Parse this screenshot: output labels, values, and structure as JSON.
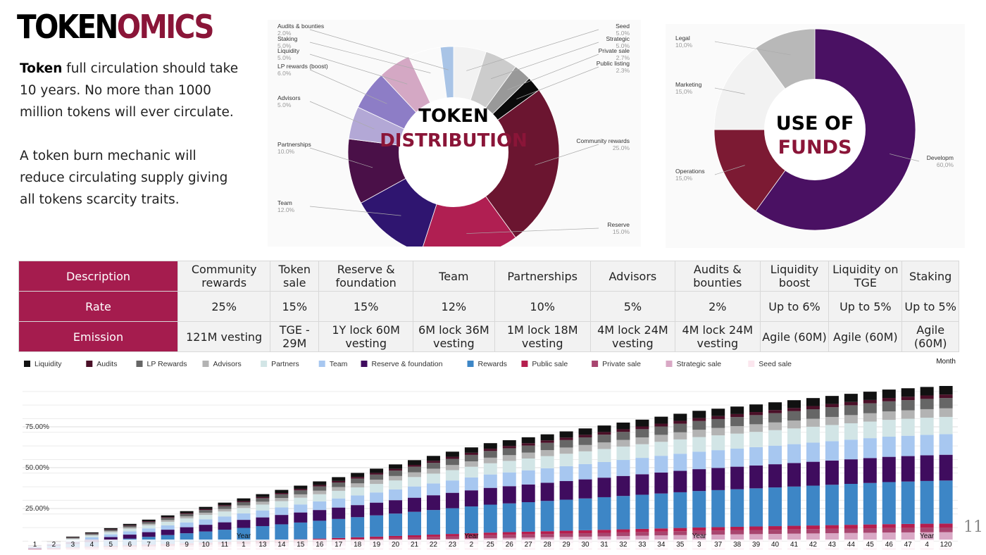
{
  "title": {
    "part1": "TOKEN",
    "part2": "OMICS"
  },
  "intro": {
    "p1_bold": "Token",
    "p1_rest": " full circulation should take 10 years. No more than 1000 million tokens will ever circulate.",
    "p2": "A token burn mechanic will reduce circulating supply giving all tokens scarcity traits."
  },
  "page_number": "11",
  "chart_data": [
    {
      "type": "pie",
      "title_line1": "TOKEN",
      "title_line2": "DISTRIBUTION",
      "slices": [
        {
          "label": "Seed",
          "value": 5.0,
          "value_text": "5.0%",
          "color": "#f2f2f2"
        },
        {
          "label": "Strategic",
          "value": 5.0,
          "value_text": "5.0%",
          "color": "#cccccc"
        },
        {
          "label": "Private sale",
          "value": 2.7,
          "value_text": "2.7%",
          "color": "#999999"
        },
        {
          "label": "Public listing",
          "value": 2.3,
          "value_text": "2.3%",
          "color": "#0a0a0a"
        },
        {
          "label": "Community rewards",
          "value": 25.0,
          "value_text": "25.0%",
          "color": "#6b1530"
        },
        {
          "label": "Reserve",
          "value": 15.0,
          "value_text": "15.0%",
          "color": "#b01f52"
        },
        {
          "label": "Team",
          "value": 12.0,
          "value_text": "12.0%",
          "color": "#2f1570"
        },
        {
          "label": "Partnerships",
          "value": 10.0,
          "value_text": "10.0%",
          "color": "#4a1048"
        },
        {
          "label": "Advisors",
          "value": 5.0,
          "value_text": "5.0%",
          "color": "#b3a8d6"
        },
        {
          "label": "LP rewards (boost)",
          "value": 6.0,
          "value_text": "6.0%",
          "color": "#8d7dc6"
        },
        {
          "label": "Liquidity",
          "value": 5.0,
          "value_text": "5.0%",
          "color": "#d4a8c4"
        },
        {
          "label": "Staking",
          "value": 5.0,
          "value_text": "5.0%",
          "color": "#fafafa"
        },
        {
          "label": "Audits & bounties",
          "value": 2.0,
          "value_text": "2.0%",
          "color": "#a9c4e6"
        }
      ]
    },
    {
      "type": "pie",
      "title_line1": "USE OF",
      "title_line2": "FUNDS",
      "slices": [
        {
          "label": "Developm",
          "value": 60.0,
          "value_text": "60,0%",
          "color": "#4a1163"
        },
        {
          "label": "Operations",
          "value": 15.0,
          "value_text": "15,0%",
          "color": "#7c1a33"
        },
        {
          "label": "Marketing",
          "value": 15.0,
          "value_text": "15,0%",
          "color": "#f2f2f2"
        },
        {
          "label": "Legal",
          "value": 10.0,
          "value_text": "10,0%",
          "color": "#b8b8b8"
        }
      ]
    },
    {
      "type": "table",
      "columns": [
        "Community rewards",
        "Token sale",
        "Reserve & foundation",
        "Team",
        "Partnerships",
        "Advisors",
        "Audits & bounties",
        "Liquidity boost",
        "Liquidity on TGE",
        "Staking"
      ],
      "rows": [
        {
          "label": "Description",
          "values": null
        },
        {
          "label": "Rate",
          "values": [
            "25%",
            "15%",
            "15%",
            "12%",
            "10%",
            "5%",
            "2%",
            "Up to 6%",
            "Up to 5%",
            "Up to 5%"
          ]
        },
        {
          "label": "Emission",
          "values": [
            "121M vesting",
            "TGE - 29M",
            "1Y lock 60M vesting",
            "6M lock 36M vesting",
            "1M lock 18M vesting",
            "4M lock 24M vesting",
            "4M lock 24M vesting",
            "Agile (60M)",
            "Agile (60M)",
            "Agile (60M)"
          ]
        }
      ]
    },
    {
      "type": "bar",
      "stacked": true,
      "ylim": [
        0,
        100
      ],
      "yticks": [
        "25.00%",
        "50.00%",
        "75.00%"
      ],
      "ytick_values": [
        25,
        50,
        75
      ],
      "categories": [
        "1",
        "2",
        "3",
        "4",
        "5",
        "6",
        "7",
        "8",
        "9",
        "10",
        "11",
        "1",
        "13",
        "14",
        "15",
        "16",
        "17",
        "18",
        "19",
        "20",
        "21",
        "22",
        "23",
        "2",
        "25",
        "26",
        "27",
        "28",
        "29",
        "30",
        "31",
        "32",
        "33",
        "34",
        "35",
        "3",
        "37",
        "38",
        "39",
        "40",
        "41",
        "42",
        "43",
        "44",
        "45",
        "46",
        "47",
        "4",
        "120"
      ],
      "year_labels": {
        "11": "Year",
        "23": "Year",
        "35": "Year",
        "47": "Year"
      },
      "x_axis_label": "Month",
      "legend_position": "top",
      "series": [
        {
          "name": "Seed sale",
          "color": "#fbe6ee",
          "final": 5.0
        },
        {
          "name": "Strategic sale",
          "color": "#d9a8c5",
          "final": 5.0
        },
        {
          "name": "Private sale",
          "color": "#a8456f",
          "final": 2.7
        },
        {
          "name": "Public sale",
          "color": "#b51e4e",
          "final": 2.3
        },
        {
          "name": "Rewards",
          "color": "#3d86c6",
          "final": 25.0
        },
        {
          "name": "Reserve & foundation",
          "color": "#3f0c5e",
          "final": 15.0
        },
        {
          "name": "Team",
          "color": "#a7c7f0",
          "final": 12.0
        },
        {
          "name": "Partners",
          "color": "#d2e5e6",
          "final": 10.0
        },
        {
          "name": "Advisors",
          "color": "#b3b3b3",
          "final": 5.0
        },
        {
          "name": "LP Rewards",
          "color": "#666666",
          "final": 6.0
        },
        {
          "name": "Audits",
          "color": "#4a0f27",
          "final": 2.0
        },
        {
          "name": "Liquidity",
          "color": "#111111",
          "final": 5.0
        }
      ],
      "legend_order": [
        "Liquidity",
        "Audits",
        "LP Rewards",
        "Advisors",
        "Partners",
        "Team",
        "Reserve & foundation",
        "Rewards",
        "Public sale",
        "Private sale",
        "Strategic sale",
        "Seed sale"
      ],
      "totals": [
        2.6,
        5.2,
        7.8,
        10.4,
        13.0,
        15.6,
        18.2,
        20.8,
        23.4,
        26.0,
        28.6,
        31.2,
        33.8,
        36.4,
        39.0,
        41.6,
        44.2,
        46.8,
        49.4,
        52.0,
        54.6,
        57.2,
        59.8,
        62.4,
        65.0,
        66.8,
        68.6,
        70.4,
        72.2,
        74.0,
        75.8,
        77.6,
        79.4,
        81.2,
        83.0,
        84.8,
        86.1,
        87.4,
        88.7,
        90.0,
        91.3,
        92.6,
        93.9,
        95.2,
        96.5,
        97.8,
        98.6,
        99.4,
        100.0
      ]
    }
  ]
}
